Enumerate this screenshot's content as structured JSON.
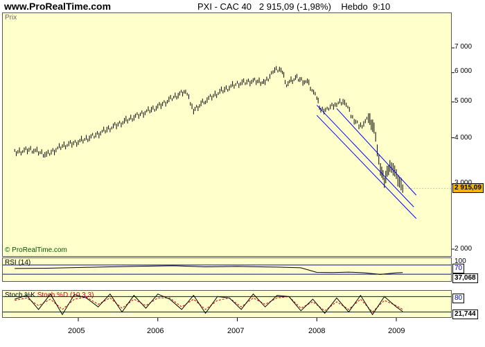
{
  "header": {
    "site": "www.ProRealTime.com",
    "instrument": "PXI - CAC 40",
    "last": "2 915,09",
    "change": "(-1,98%)",
    "period": "Hebdo",
    "time": "9:10"
  },
  "price_panel": {
    "label": "Prix",
    "copyright": "© ProRealTime.com",
    "last_value": "2 915,09",
    "y_ticks": [
      "7 000",
      "6 000",
      "5 000",
      "4 000",
      "3 000",
      "2 000"
    ]
  },
  "rsi_panel": {
    "label": "RSI (14)",
    "level_high": "70",
    "level_low": "30",
    "top_tick": "100",
    "value": "37,068"
  },
  "stoch_panel": {
    "label": "Stoch %K",
    "label2": "Stoch %D (10,3,3)",
    "level_high": "80",
    "level_low": "20",
    "value": "21,744"
  },
  "colors": {
    "panel_bg": "#ffffcc",
    "candle": "#000000",
    "channel": "#0000ff",
    "level_line": "#0000cc",
    "stoch_d": "#cc0000",
    "badge": "#f5b400"
  },
  "chart_data": {
    "type": "line",
    "title": "PXI - CAC 40",
    "y_scale": "log",
    "ylim": [
      2000,
      7800
    ],
    "x_labels": [
      "2005",
      "2006",
      "2007",
      "2008",
      "2009"
    ],
    "series": [
      {
        "name": "Prix",
        "x": [
          2004.2,
          2004.4,
          2004.6,
          2004.8,
          2005.0,
          2005.2,
          2005.4,
          2005.6,
          2005.8,
          2006.0,
          2006.2,
          2006.35,
          2006.45,
          2006.6,
          2006.8,
          2007.0,
          2007.2,
          2007.35,
          2007.45,
          2007.55,
          2007.62,
          2007.75,
          2007.9,
          2008.0,
          2008.05,
          2008.15,
          2008.25,
          2008.35,
          2008.45,
          2008.55,
          2008.65,
          2008.72,
          2008.8,
          2008.85,
          2008.92,
          2009.0,
          2009.08
        ],
        "values": [
          3650,
          3720,
          3600,
          3800,
          3900,
          4050,
          4250,
          4450,
          4650,
          4850,
          5150,
          5350,
          4750,
          5050,
          5350,
          5600,
          5700,
          5650,
          6050,
          6150,
          5600,
          5800,
          5600,
          5100,
          4750,
          4800,
          4950,
          5050,
          4500,
          4300,
          4500,
          4250,
          3300,
          3050,
          3400,
          3150,
          2915
        ]
      }
    ],
    "channel_lines": [
      {
        "x": [
          2008.0,
          2009.25
        ],
        "y": [
          4600,
          2420
        ]
      },
      {
        "x": [
          2008.0,
          2009.22
        ],
        "y": [
          4900,
          2600
        ]
      },
      {
        "x": [
          2008.25,
          2009.25
        ],
        "y": [
          4800,
          2800
        ]
      }
    ],
    "indicators": {
      "rsi": {
        "period": 14,
        "levels": [
          30,
          70
        ],
        "ylim": [
          0,
          100
        ],
        "x": [
          2004.2,
          2004.6,
          2005.0,
          2005.4,
          2005.8,
          2006.2,
          2006.6,
          2007.0,
          2007.3,
          2007.5,
          2007.8,
          2008.0,
          2008.2,
          2008.4,
          2008.6,
          2008.8,
          2009.0,
          2009.08
        ],
        "values": [
          55,
          56,
          59,
          62,
          65,
          67,
          62,
          64,
          62,
          61,
          58,
          38,
          37,
          39,
          36,
          29,
          36,
          37
        ]
      },
      "stoch": {
        "levels": [
          20,
          80
        ],
        "ylim": [
          0,
          100
        ],
        "x": [
          2004.2,
          2004.35,
          2004.5,
          2004.65,
          2004.8,
          2004.95,
          2005.1,
          2005.25,
          2005.4,
          2005.55,
          2005.7,
          2005.85,
          2006.0,
          2006.15,
          2006.3,
          2006.45,
          2006.6,
          2006.75,
          2006.9,
          2007.05,
          2007.2,
          2007.35,
          2007.5,
          2007.65,
          2007.8,
          2007.95,
          2008.1,
          2008.25,
          2008.4,
          2008.55,
          2008.7,
          2008.85,
          2009.0,
          2009.08
        ],
        "k": [
          70,
          85,
          30,
          90,
          10,
          88,
          75,
          40,
          90,
          20,
          85,
          35,
          90,
          70,
          30,
          85,
          15,
          80,
          75,
          30,
          90,
          40,
          85,
          80,
          25,
          70,
          15,
          75,
          20,
          85,
          10,
          80,
          40,
          22
        ],
        "d": [
          65,
          75,
          45,
          70,
          30,
          70,
          78,
          50,
          75,
          35,
          70,
          45,
          75,
          75,
          40,
          70,
          30,
          65,
          75,
          40,
          75,
          50,
          75,
          80,
          35,
          60,
          25,
          60,
          30,
          70,
          20,
          65,
          45,
          30
        ]
      }
    }
  }
}
